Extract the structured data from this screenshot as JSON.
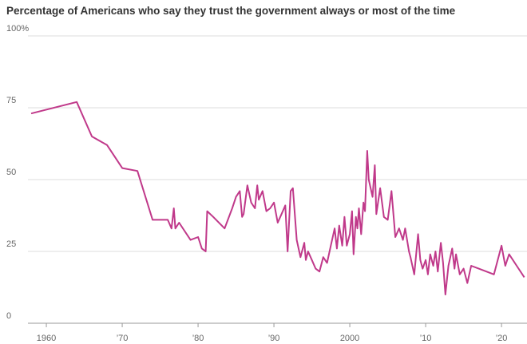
{
  "chart_data": {
    "type": "line",
    "title": "Percentage of Americans who say they trust the government always or most of the time",
    "xlim": [
      1958.1,
      2023.15
    ],
    "ylim": [
      0,
      100
    ],
    "xticks": [
      1960,
      {
        "value": 1970,
        "label": "’70"
      },
      {
        "value": 1980,
        "label": "’80"
      },
      {
        "value": 1990,
        "label": "’90"
      },
      2000,
      {
        "value": 2010,
        "label": "’10"
      },
      {
        "value": 2020,
        "label": "’20"
      }
    ],
    "yticks": [
      0,
      25,
      50,
      75,
      {
        "value": 100,
        "label": "100%"
      }
    ],
    "grid": true,
    "color": "#c0398a",
    "x": [
      1958,
      1964,
      1966,
      1968,
      1970,
      1972,
      1974,
      1976,
      1976.5,
      1976.8,
      1977,
      1977.5,
      1979,
      1980,
      1980.5,
      1981,
      1981.2,
      1982,
      1983.5,
      1984.5,
      1985,
      1985.5,
      1985.8,
      1986,
      1986.5,
      1987,
      1987.5,
      1987.8,
      1988,
      1988.5,
      1989,
      1989.5,
      1990,
      1990.5,
      1991,
      1991.5,
      1991.8,
      1992.2,
      1992.5,
      1993,
      1993.5,
      1994,
      1994.2,
      1994.5,
      1995,
      1995.5,
      1996,
      1996.5,
      1997,
      1997.5,
      1998,
      1998.3,
      1998.6,
      1999,
      1999.3,
      1999.6,
      2000,
      2000.3,
      2000.5,
      2000.8,
      2001,
      2001.2,
      2001.5,
      2001.8,
      2002,
      2002.3,
      2002.5,
      2003,
      2003.3,
      2003.5,
      2004,
      2004.5,
      2005,
      2005.5,
      2006,
      2006.5,
      2007,
      2007.3,
      2007.8,
      2008,
      2008.5,
      2009,
      2009.3,
      2009.6,
      2010,
      2010.3,
      2010.6,
      2011,
      2011.3,
      2011.6,
      2012,
      2012.3,
      2012.6,
      2013,
      2013.5,
      2013.8,
      2014,
      2014.5,
      2015,
      2015.5,
      2016,
      2017,
      2018,
      2019,
      2020,
      2020.5,
      2021,
      2022,
      2023
    ],
    "values": [
      73,
      77,
      65,
      62,
      54,
      53,
      36,
      36,
      33,
      40,
      33,
      35,
      29,
      30,
      26,
      25,
      39,
      37,
      33,
      40,
      44,
      46,
      37,
      38,
      48,
      42,
      40,
      48,
      43,
      46,
      39,
      40,
      42,
      35,
      38,
      41,
      25,
      46,
      47,
      29,
      23,
      28,
      22,
      25,
      22,
      19,
      18,
      23,
      21,
      27,
      33,
      26,
      34,
      27,
      37,
      27,
      31,
      39,
      24,
      37,
      33,
      40,
      31,
      42,
      39,
      60,
      50,
      44,
      55,
      38,
      47,
      37,
      36,
      46,
      30,
      33,
      29,
      33,
      25,
      23,
      17,
      31,
      22,
      19,
      22,
      17,
      24,
      20,
      25,
      18,
      28,
      21,
      10,
      20,
      26,
      19,
      24,
      17,
      19,
      14,
      20,
      19,
      18,
      17,
      27,
      20,
      24,
      20,
      16
    ]
  }
}
